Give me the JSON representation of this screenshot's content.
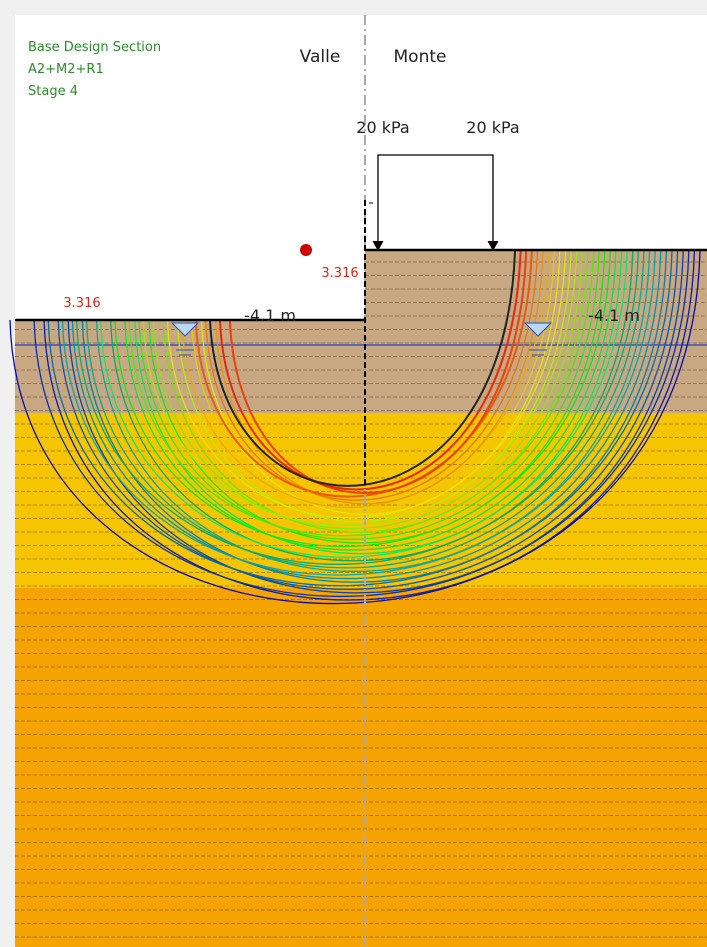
{
  "legend": {
    "lines": [
      "Base Design Section",
      "A2+M2+R1",
      "Stage 4"
    ]
  },
  "sides": {
    "left": "Valle",
    "right": "Monte"
  },
  "loads": [
    "20 kPa",
    "20 kPa"
  ],
  "factor_labels": [
    "3.316",
    "3.316"
  ],
  "level_labels": [
    "-4.1 m",
    "-4.1 m"
  ]
}
